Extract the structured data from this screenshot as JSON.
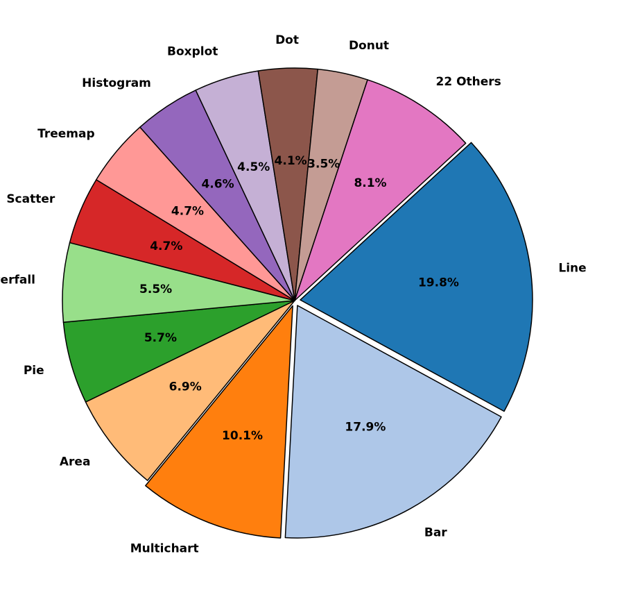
{
  "chart_data": {
    "type": "pie",
    "title": "",
    "start_angle_deg": -90,
    "direction": "clockwise",
    "slices": [
      {
        "label": "Multichart",
        "value": 10.1,
        "pct_label": "10.1%",
        "color": "#ff7f0e",
        "exploded": true
      },
      {
        "label": "Area",
        "value": 6.9,
        "pct_label": "6.9%",
        "color": "#ffbb78",
        "exploded": false
      },
      {
        "label": "Pie",
        "value": 5.7,
        "pct_label": "5.7%",
        "color": "#2ca02c",
        "exploded": false
      },
      {
        "label": "Waterfall",
        "value": 5.5,
        "pct_label": "5.5%",
        "color": "#98df8a",
        "exploded": false
      },
      {
        "label": "Scatter",
        "value": 4.7,
        "pct_label": "4.7%",
        "color": "#d62728",
        "exploded": false
      },
      {
        "label": "Treemap",
        "value": 4.7,
        "pct_label": "4.7%",
        "color": "#ff9896",
        "exploded": false
      },
      {
        "label": "Histogram",
        "value": 4.6,
        "pct_label": "4.6%",
        "color": "#9467bd",
        "exploded": false
      },
      {
        "label": "Boxplot",
        "value": 4.5,
        "pct_label": "4.5%",
        "color": "#c5b0d5",
        "exploded": false
      },
      {
        "label": "Dot",
        "value": 4.1,
        "pct_label": "4.1%",
        "color": "#8c564b",
        "exploded": false
      },
      {
        "label": "Donut",
        "value": 3.5,
        "pct_label": "3.5%",
        "color": "#c49c94",
        "exploded": false
      },
      {
        "label": "22 Others",
        "value": 8.1,
        "pct_label": "8.1%",
        "color": "#e377c2",
        "exploded": false
      },
      {
        "label": "Line",
        "value": 19.8,
        "pct_label": "19.8%",
        "color": "#1f77b4",
        "exploded": true
      },
      {
        "label": "Bar",
        "value": 17.9,
        "pct_label": "17.9%",
        "color": "#aec7e8",
        "exploded": true
      }
    ]
  }
}
